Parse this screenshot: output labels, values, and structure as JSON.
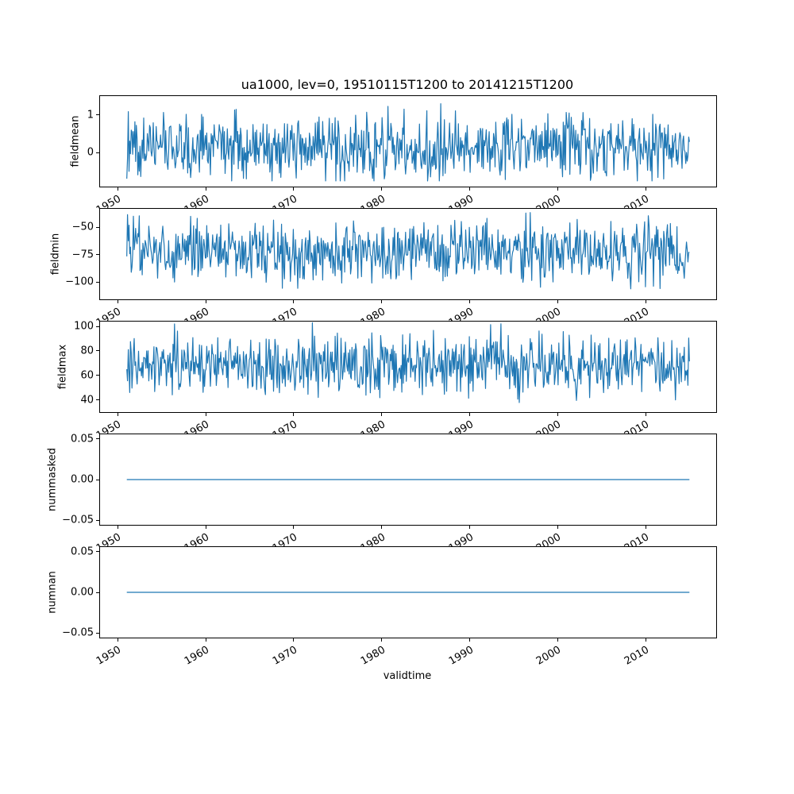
{
  "figure": {
    "title": "ua1000, lev=0, 19510115T1200 to 20141215T1200",
    "xlabel": "validtime",
    "background": "#ffffff",
    "line_color": "#1f77b4",
    "spine_color": "#000000"
  },
  "chart_data": [
    {
      "type": "line",
      "title": "ua1000, lev=0, 19510115T1200 to 20141215T1200",
      "ylabel": "fieldmean",
      "xlim": [
        1948,
        2018
      ],
      "xticks": [
        1950,
        1960,
        1970,
        1980,
        1990,
        2000,
        2010
      ],
      "xtick_labels": [
        "1950",
        "1960",
        "1970",
        "1980",
        "1990",
        "2000",
        "2010"
      ],
      "ylim": [
        -0.9,
        1.5
      ],
      "yticks": [
        {
          "value": 1,
          "label": "1"
        },
        {
          "value": 0,
          "label": "0"
        }
      ],
      "grid": false,
      "legend": false,
      "color": "#1f77b4",
      "series": {
        "kind": "noisy-monthly",
        "description": "monthly fieldmean of ua1000, 1951-01-15 to 2014-12-15, noisy around 0.15",
        "n": 768,
        "x_start": 1951.0417,
        "x_step": 0.0833333,
        "seed": 11,
        "mean": 0.15,
        "spread": 1.25,
        "clip_min": -0.75,
        "clip_max": 1.4,
        "observed_range": [
          -0.75,
          1.4
        ]
      }
    },
    {
      "type": "line",
      "ylabel": "fieldmin",
      "xlim": [
        1948,
        2018
      ],
      "xticks": [
        1950,
        1960,
        1970,
        1980,
        1990,
        2000,
        2010
      ],
      "xtick_labels": [
        "1950",
        "1960",
        "1970",
        "1980",
        "1990",
        "2000",
        "2010"
      ],
      "ylim": [
        -116,
        -33
      ],
      "yticks": [
        {
          "value": -50,
          "label": "−50"
        },
        {
          "value": -75,
          "label": "−75"
        },
        {
          "value": -100,
          "label": "−100"
        }
      ],
      "grid": false,
      "legend": false,
      "color": "#1f77b4",
      "series": {
        "kind": "noisy-monthly",
        "description": "monthly fieldmin of ua1000, noisy around -73",
        "n": 768,
        "x_start": 1951.0417,
        "x_step": 0.0833333,
        "seed": 23,
        "mean": -73,
        "spread": 40,
        "clip_min": -113,
        "clip_max": -34,
        "observed_range": [
          -113,
          -34
        ]
      }
    },
    {
      "type": "line",
      "ylabel": "fieldmax",
      "xlim": [
        1948,
        2018
      ],
      "xticks": [
        1950,
        1960,
        1970,
        1980,
        1990,
        2000,
        2010
      ],
      "xtick_labels": [
        "1950",
        "1960",
        "1970",
        "1980",
        "1990",
        "2000",
        "2010"
      ],
      "ylim": [
        30,
        104
      ],
      "yticks": [
        {
          "value": 100,
          "label": "100"
        },
        {
          "value": 80,
          "label": "80"
        },
        {
          "value": 60,
          "label": "60"
        },
        {
          "value": 40,
          "label": "40"
        }
      ],
      "grid": false,
      "legend": false,
      "color": "#1f77b4",
      "series": {
        "kind": "noisy-monthly",
        "description": "monthly fieldmax of ua1000, noisy around 69",
        "n": 768,
        "x_start": 1951.0417,
        "x_step": 0.0833333,
        "seed": 37,
        "mean": 69,
        "spread": 36,
        "clip_min": 33,
        "clip_max": 103,
        "observed_range": [
          33,
          103
        ]
      }
    },
    {
      "type": "line",
      "ylabel": "nummasked",
      "xlim": [
        1948,
        2018
      ],
      "xticks": [
        1950,
        1960,
        1970,
        1980,
        1990,
        2000,
        2010
      ],
      "xtick_labels": [
        "1950",
        "1960",
        "1970",
        "1980",
        "1990",
        "2000",
        "2010"
      ],
      "ylim": [
        -0.0557,
        0.0557
      ],
      "yticks": [
        {
          "value": 0.05,
          "label": "0.05"
        },
        {
          "value": 0,
          "label": "0.00"
        },
        {
          "value": -0.05,
          "label": "−0.05"
        }
      ],
      "grid": false,
      "legend": false,
      "color": "#1f77b4",
      "series": {
        "kind": "constant",
        "description": "nummasked is 0 for every timestep",
        "n": 768,
        "x_start": 1951.0417,
        "x_step": 0.0833333,
        "value": 0,
        "observed_range": [
          0,
          0
        ]
      }
    },
    {
      "type": "line",
      "ylabel": "numnan",
      "xlabel": "validtime",
      "xlim": [
        1948,
        2018
      ],
      "xticks": [
        1950,
        1960,
        1970,
        1980,
        1990,
        2000,
        2010
      ],
      "xtick_labels": [
        "1950",
        "1960",
        "1970",
        "1980",
        "1990",
        "2000",
        "2010"
      ],
      "ylim": [
        -0.0557,
        0.0557
      ],
      "yticks": [
        {
          "value": 0.05,
          "label": "0.05"
        },
        {
          "value": 0,
          "label": "0.00"
        },
        {
          "value": -0.05,
          "label": "−0.05"
        }
      ],
      "grid": false,
      "legend": false,
      "color": "#1f77b4",
      "series": {
        "kind": "constant",
        "description": "numnan is 0 for every timestep",
        "n": 768,
        "x_start": 1951.0417,
        "x_step": 0.0833333,
        "value": 0,
        "observed_range": [
          0,
          0
        ]
      }
    }
  ]
}
